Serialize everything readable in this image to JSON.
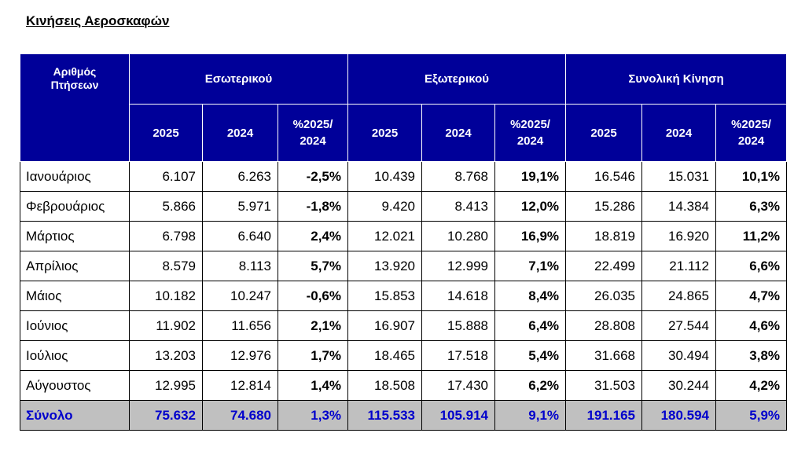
{
  "title": "Κινήσεις Αεροσκαφών",
  "header": {
    "corner": [
      "Αριθμός",
      "Πτήσεων"
    ],
    "groups": [
      "Εσωτερικού",
      "Εξωτερικού",
      "Συνολική Κίνηση"
    ],
    "sub": {
      "y2025": "2025",
      "y2024": "2024",
      "pct_line1": "%2025/",
      "pct_line2": "2024"
    }
  },
  "rows": [
    {
      "month": "Ιανουάριος",
      "cells": [
        "6.107",
        "6.263",
        "-2,5%",
        "10.439",
        "8.768",
        "19,1%",
        "16.546",
        "15.031",
        "10,1%"
      ]
    },
    {
      "month": "Φεβρουάριος",
      "cells": [
        "5.866",
        "5.971",
        "-1,8%",
        "9.420",
        "8.413",
        "12,0%",
        "15.286",
        "14.384",
        "6,3%"
      ]
    },
    {
      "month": "Μάρτιος",
      "cells": [
        "6.798",
        "6.640",
        "2,4%",
        "12.021",
        "10.280",
        "16,9%",
        "18.819",
        "16.920",
        "11,2%"
      ]
    },
    {
      "month": "Απρίλιος",
      "cells": [
        "8.579",
        "8.113",
        "5,7%",
        "13.920",
        "12.999",
        "7,1%",
        "22.499",
        "21.112",
        "6,6%"
      ]
    },
    {
      "month": "Μάιος",
      "cells": [
        "10.182",
        "10.247",
        "-0,6%",
        "15.853",
        "14.618",
        "8,4%",
        "26.035",
        "24.865",
        "4,7%"
      ]
    },
    {
      "month": "Ιούνιος",
      "cells": [
        "11.902",
        "11.656",
        "2,1%",
        "16.907",
        "15.888",
        "6,4%",
        "28.808",
        "27.544",
        "4,6%"
      ]
    },
    {
      "month": "Ιούλιος",
      "cells": [
        "13.203",
        "12.976",
        "1,7%",
        "18.465",
        "17.518",
        "5,4%",
        "31.668",
        "30.494",
        "3,8%"
      ]
    },
    {
      "month": "Αύγουστος",
      "cells": [
        "12.995",
        "12.814",
        "1,4%",
        "18.508",
        "17.430",
        "6,2%",
        "31.503",
        "30.244",
        "4,2%"
      ]
    }
  ],
  "total": {
    "month": "Σύνολο",
    "cells": [
      "75.632",
      "74.680",
      "1,3%",
      "115.533",
      "105.914",
      "9,1%",
      "191.165",
      "180.594",
      "5,9%"
    ]
  },
  "colors": {
    "header_bg": "#000099",
    "total_bg": "#c0c0c0",
    "total_text": "#0000cc"
  }
}
